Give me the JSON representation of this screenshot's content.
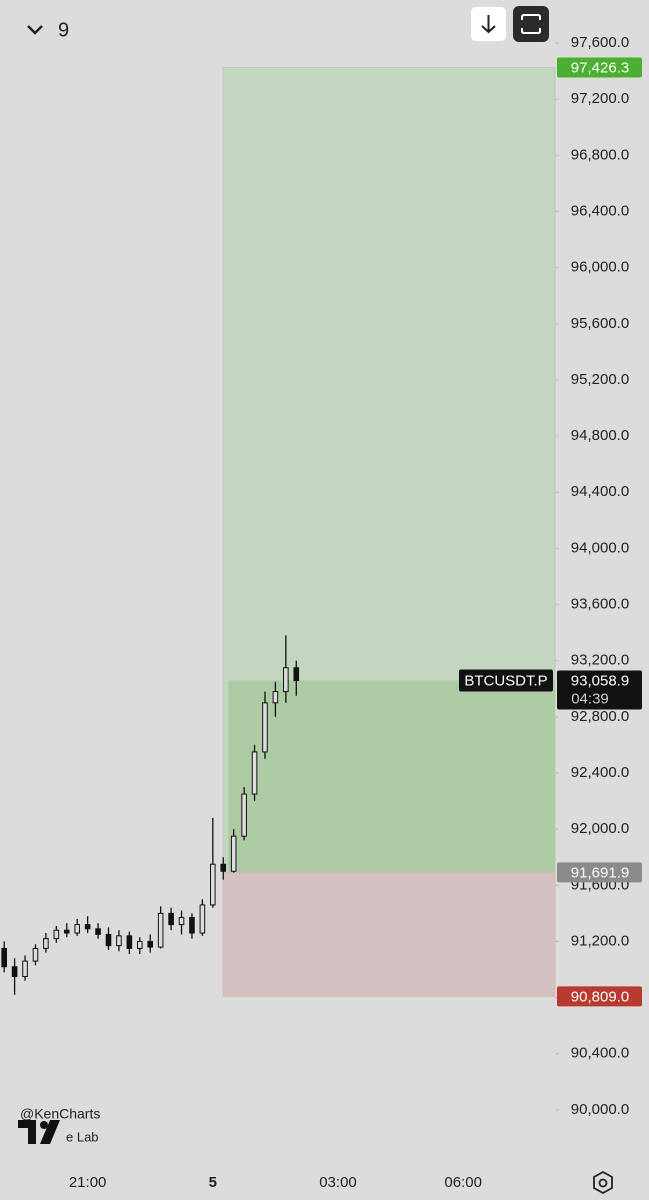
{
  "header": {
    "interval": "9"
  },
  "chart_data": {
    "type": "candlestick",
    "symbol": "BTCUSDT.P",
    "x": [
      19.0,
      19.25,
      19.5,
      19.75,
      20.0,
      20.25,
      20.5,
      20.75,
      21.0,
      21.25,
      21.5,
      21.75,
      22.0,
      22.25,
      22.5,
      22.75,
      23.0,
      23.25,
      23.5,
      23.75,
      24.0,
      24.25,
      24.5,
      24.75,
      25.0,
      25.25,
      25.5,
      25.75,
      26.0
    ],
    "open": [
      91150,
      91020,
      90950,
      91060,
      91150,
      91220,
      91280,
      91260,
      91320,
      91290,
      91250,
      91170,
      91240,
      91150,
      91200,
      91160,
      91400,
      91320,
      91370,
      91260,
      91460,
      91750,
      91700,
      91950,
      92250,
      92550,
      92900,
      92980,
      93150
    ],
    "high": [
      91200,
      91080,
      91100,
      91180,
      91260,
      91310,
      91330,
      91360,
      91380,
      91330,
      91300,
      91280,
      91270,
      91230,
      91250,
      91450,
      91440,
      91420,
      91400,
      91500,
      92080,
      91800,
      92000,
      92300,
      92600,
      92980,
      93050,
      93380,
      93200
    ],
    "low": [
      90980,
      90820,
      90920,
      91030,
      91120,
      91190,
      91230,
      91240,
      91260,
      91220,
      91140,
      91130,
      91110,
      91110,
      91120,
      91150,
      91280,
      91250,
      91220,
      91240,
      91440,
      91640,
      91690,
      91920,
      92200,
      92500,
      92800,
      92900,
      92950
    ],
    "close": [
      91020,
      90950,
      91060,
      91150,
      91220,
      91280,
      91260,
      91320,
      91290,
      91250,
      91170,
      91240,
      91150,
      91200,
      91160,
      91400,
      91320,
      91370,
      91260,
      91460,
      91750,
      91700,
      91950,
      92250,
      92550,
      92900,
      92980,
      93150,
      93058.9
    ],
    "color": "#111111",
    "xlim": [
      18.9,
      32.2
    ],
    "xticks": [
      {
        "value": 21,
        "label": "21:00"
      },
      {
        "value": 24,
        "label": "5"
      },
      {
        "value": 27,
        "label": "03:00"
      },
      {
        "value": 30,
        "label": "06:00"
      }
    ],
    "ylim": [
      89650,
      97900
    ],
    "yticks": [
      {
        "value": 90000,
        "label": "90,000.0"
      },
      {
        "value": 90400,
        "label": "90,400.0"
      },
      {
        "value": 90800,
        "label": "90,800.0"
      },
      {
        "value": 91200,
        "label": "91,200.0"
      },
      {
        "value": 91600,
        "label": "91,600.0"
      },
      {
        "value": 92000,
        "label": "92,000.0"
      },
      {
        "value": 92400,
        "label": "92,400.0"
      },
      {
        "value": 92800,
        "label": "92,800.0"
      },
      {
        "value": 93200,
        "label": "93,200.0"
      },
      {
        "value": 93600,
        "label": "93,600.0"
      },
      {
        "value": 94000,
        "label": "94,000.0"
      },
      {
        "value": 94400,
        "label": "94,400.0"
      },
      {
        "value": 94800,
        "label": "94,800.0"
      },
      {
        "value": 95200,
        "label": "95,200.0"
      },
      {
        "value": 95600,
        "label": "95,600.0"
      },
      {
        "value": 96000,
        "label": "96,000.0"
      },
      {
        "value": 96400,
        "label": "96,400.0"
      },
      {
        "value": 96800,
        "label": "96,800.0"
      },
      {
        "value": 97200,
        "label": "97,200.0"
      },
      {
        "value": 97600,
        "label": "97,600.0"
      }
    ],
    "last_price": {
      "value": 93058.9,
      "label": "93,058.9"
    },
    "countdown": "04:39",
    "position": {
      "start": 24.25,
      "target": {
        "value": 97426.3,
        "label": "97,426.3",
        "color": "#4caf32"
      },
      "entry": {
        "value": 91691.9,
        "label": "91,691.9",
        "color": "#8a8a8a"
      },
      "stop": {
        "value": 90809.0,
        "label": "90,809.0",
        "color": "#b83a2e"
      },
      "profit_color": "#c3d6bf",
      "open_profit_color": "#adcba5",
      "loss_color": "#d3c1c1"
    },
    "watermark": [
      "@KenCharts",
      "e Lab"
    ]
  }
}
